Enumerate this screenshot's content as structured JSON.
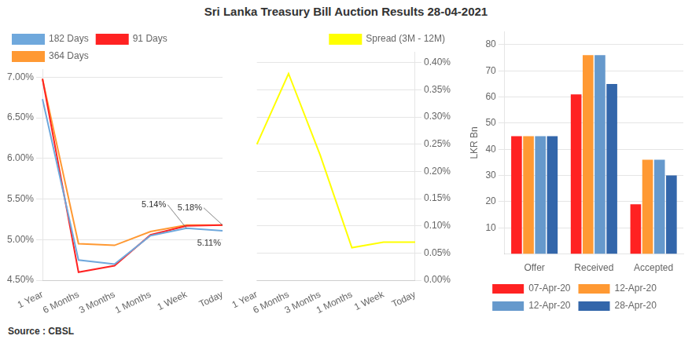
{
  "title": "Sri Lanka Treasury Bill Auction Results  28-04-2021",
  "annotations": [
    {
      "text": "Source : CBSL"
    }
  ],
  "chart_data": [
    {
      "type": "line",
      "categories": [
        "1 Year",
        "6 Months",
        "3 Months",
        "1 Months",
        "1 Week",
        "Today"
      ],
      "series": [
        {
          "name": "182 Days",
          "color": "#6fa8dc",
          "values": [
            6.73,
            4.75,
            4.7,
            5.05,
            5.14,
            5.11
          ]
        },
        {
          "name": "91 Days",
          "color": "#ff2222",
          "values": [
            6.98,
            4.6,
            4.68,
            5.06,
            5.17,
            5.18
          ]
        },
        {
          "name": "364 Days",
          "color": "#ff9933",
          "values": [
            6.98,
            4.95,
            4.93,
            5.1,
            5.18,
            5.18
          ]
        }
      ],
      "ylim": [
        4.5,
        7.1
      ],
      "yticks": [
        {
          "value": 4.5,
          "label": "4.50%"
        },
        {
          "value": 5.0,
          "label": "5.00%"
        },
        {
          "value": 5.5,
          "label": "5.50%"
        },
        {
          "value": 6.0,
          "label": "6.00%"
        },
        {
          "value": 6.5,
          "label": "6.50%"
        },
        {
          "value": 7.0,
          "label": "7.00%"
        }
      ],
      "grid": true,
      "legend": "top left",
      "annotations": [
        {
          "text": "5.18%",
          "x": "Today",
          "y": 5.18
        },
        {
          "text": "5.14%",
          "x": "1 Week",
          "y": 5.14
        },
        {
          "text": "5.11%",
          "x": "Today",
          "y": 5.11
        }
      ]
    },
    {
      "type": "line",
      "categories": [
        "1 Year",
        "6 Months",
        "3 Months",
        "1 Months",
        "1 Week",
        "Today"
      ],
      "series": [
        {
          "name": "Spread (3M - 12M)",
          "color": "#ffff00",
          "values": [
            0.25,
            0.38,
            0.23,
            0.06,
            0.07,
            0.07
          ],
          "axis": "y2"
        }
      ],
      "y2lim": [
        0.0,
        0.42
      ],
      "y2ticks": [
        {
          "value": 0.0,
          "label": "0.00%"
        },
        {
          "value": 0.05,
          "label": "0.05%"
        },
        {
          "value": 0.1,
          "label": "0.10%"
        },
        {
          "value": 0.15,
          "label": "0.15%"
        },
        {
          "value": 0.2,
          "label": "0.20%"
        },
        {
          "value": 0.25,
          "label": "0.25%"
        },
        {
          "value": 0.3,
          "label": "0.30%"
        },
        {
          "value": 0.35,
          "label": "0.35%"
        },
        {
          "value": 0.4,
          "label": "0.40%"
        }
      ],
      "grid": true,
      "legend": "top right"
    },
    {
      "type": "bar",
      "categories": [
        "Offer",
        "Received",
        "Accepted"
      ],
      "series": [
        {
          "name": "07-Apr-20",
          "color": "#ff2222",
          "values": [
            45,
            61,
            19
          ]
        },
        {
          "name": "12-Apr-20",
          "color": "#ff9933",
          "values": [
            45,
            76,
            36
          ]
        },
        {
          "name": "12-Apr-20",
          "color": "#6699cc",
          "values": [
            45,
            76,
            36
          ]
        },
        {
          "name": "28-Apr-20",
          "color": "#3366aa",
          "values": [
            45,
            65,
            30
          ]
        }
      ],
      "ylim": [
        0,
        85
      ],
      "yticks": [
        10,
        20,
        30,
        40,
        50,
        60,
        70,
        80
      ],
      "y_label": "LKR Bn",
      "grid": true,
      "legend": "bottom"
    }
  ]
}
